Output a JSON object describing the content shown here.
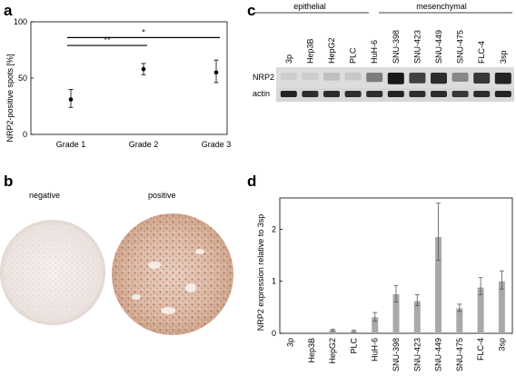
{
  "panels": {
    "a": "a",
    "b": "b",
    "c": "c",
    "d": "d"
  },
  "chart_data": [
    {
      "panel": "a",
      "type": "scatter",
      "title": "",
      "xlabel": "",
      "ylabel": "NRP2-positive spots [%]",
      "categories": [
        "Grade 1",
        "Grade 2",
        "Grade 3"
      ],
      "values": [
        31,
        58,
        55
      ],
      "err_low": [
        24,
        53,
        46
      ],
      "err_high": [
        40,
        63,
        66
      ],
      "ylim": [
        0,
        100
      ],
      "yticks": [
        "0",
        "50",
        "100"
      ],
      "significance": [
        {
          "label": "**",
          "from": "Grade 1",
          "to": "Grade 2"
        },
        {
          "label": "*",
          "from": "Grade 1",
          "to": "Grade 3"
        }
      ]
    },
    {
      "panel": "d",
      "type": "bar",
      "title": "",
      "xlabel": "",
      "ylabel": "NRP2 expression relative to 3sp",
      "categories": [
        "3p",
        "Hep3B",
        "HepG2",
        "PLC",
        "HuH-6",
        "SNU-398",
        "SNU-423",
        "SNU-449",
        "SNU-475",
        "FLC-4",
        "3sp"
      ],
      "values": [
        0,
        0,
        0.06,
        0.04,
        0.31,
        0.75,
        0.62,
        1.85,
        0.48,
        0.88,
        1.0
      ],
      "err_low": [
        0,
        0,
        0.04,
        0.02,
        0.23,
        0.6,
        0.53,
        1.4,
        0.42,
        0.74,
        0.85
      ],
      "err_high": [
        0,
        0,
        0.08,
        0.06,
        0.4,
        0.92,
        0.74,
        2.5,
        0.56,
        1.07,
        1.2
      ],
      "ylim": [
        0,
        2.6
      ],
      "yticks": [
        "0",
        "1",
        "2"
      ]
    }
  ],
  "ihc": {
    "negative_label": "negative",
    "positive_label": "positive"
  },
  "blot": {
    "group_epithelial": "epithelial",
    "group_mesenchymal": "mesenchymal",
    "lanes": [
      "3p",
      "Hep3B",
      "HepG2",
      "PLC",
      "HuH-6",
      "SNU-398",
      "SNU-423",
      "SNU-449",
      "SNU-475",
      "FLC-4",
      "3sp"
    ],
    "row_nrp2": "NRP2",
    "row_actin": "actin",
    "nrp2_intensity": [
      0.05,
      0.05,
      0.12,
      0.08,
      0.45,
      0.95,
      0.75,
      0.85,
      0.4,
      0.8,
      0.9
    ],
    "actin_intensity": [
      0.9,
      0.85,
      0.85,
      0.85,
      0.85,
      0.9,
      0.85,
      0.85,
      0.8,
      0.85,
      0.9
    ]
  }
}
